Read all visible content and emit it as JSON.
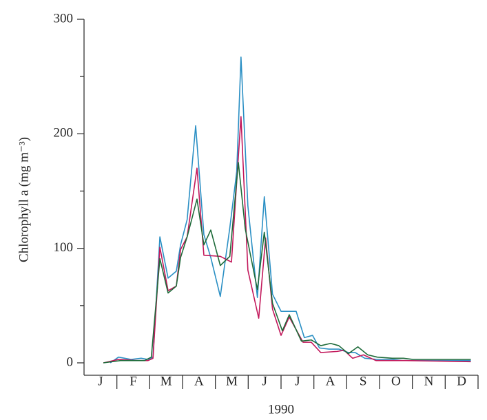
{
  "chart_data": {
    "type": "line",
    "y_label": "Chlorophyll a (mg m⁻³)",
    "x_label": "1990",
    "categories": [
      "J",
      "F",
      "M",
      "A",
      "M",
      "J",
      "J",
      "A",
      "S",
      "O",
      "N",
      "D"
    ],
    "xlim": [
      0,
      12
    ],
    "ylim": [
      0,
      300
    ],
    "yticks": [
      0,
      100,
      200,
      300
    ],
    "yminor": [
      50,
      150,
      250
    ],
    "series": [
      {
        "color": "#2a8fc4",
        "x": [
          0.8,
          1.05,
          1.43,
          1.74,
          1.95,
          2.1,
          2.31,
          2.56,
          2.81,
          2.94,
          3.14,
          3.4,
          3.65,
          3.86,
          4.15,
          4.44,
          4.65,
          4.78,
          4.99,
          5.28,
          5.49,
          5.74,
          6.0,
          6.46,
          6.71,
          6.96,
          7.17,
          7.46,
          7.76,
          8.05,
          8.26,
          8.55,
          8.93,
          9.39,
          9.69,
          10.02,
          11.28,
          11.78
        ],
        "values": [
          0,
          5,
          3,
          4,
          3,
          5,
          110,
          74,
          80,
          103,
          125,
          207,
          112,
          92,
          58,
          118,
          167,
          267,
          137,
          57,
          145,
          60,
          45,
          45,
          22,
          24,
          13,
          12,
          12,
          9,
          9,
          4,
          3,
          3,
          2,
          2,
          2,
          2
        ]
      },
      {
        "color": "#c2185b",
        "x": [
          0.59,
          1.05,
          1.64,
          1.95,
          2.1,
          2.31,
          2.56,
          2.81,
          2.94,
          3.14,
          3.44,
          3.65,
          4.15,
          4.49,
          4.78,
          4.99,
          5.32,
          5.53,
          5.74,
          6.0,
          6.25,
          6.67,
          6.92,
          7.21,
          7.71,
          7.92,
          8.18,
          8.51,
          8.89,
          9.39,
          9.81,
          11.78
        ],
        "values": [
          0,
          3,
          2,
          2,
          4,
          101,
          63,
          67,
          99,
          110,
          170,
          94,
          93,
          88,
          215,
          81,
          39,
          109,
          47,
          24,
          40,
          18,
          18,
          9,
          10,
          11,
          4,
          7,
          2,
          2,
          2,
          1
        ]
      },
      {
        "color": "#1e6b3a",
        "x": [
          0.59,
          1.11,
          1.84,
          2.05,
          2.31,
          2.56,
          2.81,
          2.94,
          3.14,
          3.44,
          3.65,
          3.86,
          4.15,
          4.44,
          4.7,
          4.91,
          5.28,
          5.49,
          5.74,
          6.04,
          6.25,
          6.62,
          6.92,
          7.21,
          7.51,
          7.76,
          8.05,
          8.34,
          8.64,
          8.93,
          9.39,
          9.73,
          10.02,
          11.78
        ],
        "values": [
          0,
          2,
          2,
          5,
          91,
          61,
          67,
          92,
          110,
          143,
          103,
          116,
          85,
          93,
          175,
          117,
          64,
          114,
          52,
          28,
          42,
          19,
          20,
          15,
          17,
          15,
          8,
          14,
          7,
          5,
          4,
          4,
          3,
          3
        ]
      }
    ]
  }
}
